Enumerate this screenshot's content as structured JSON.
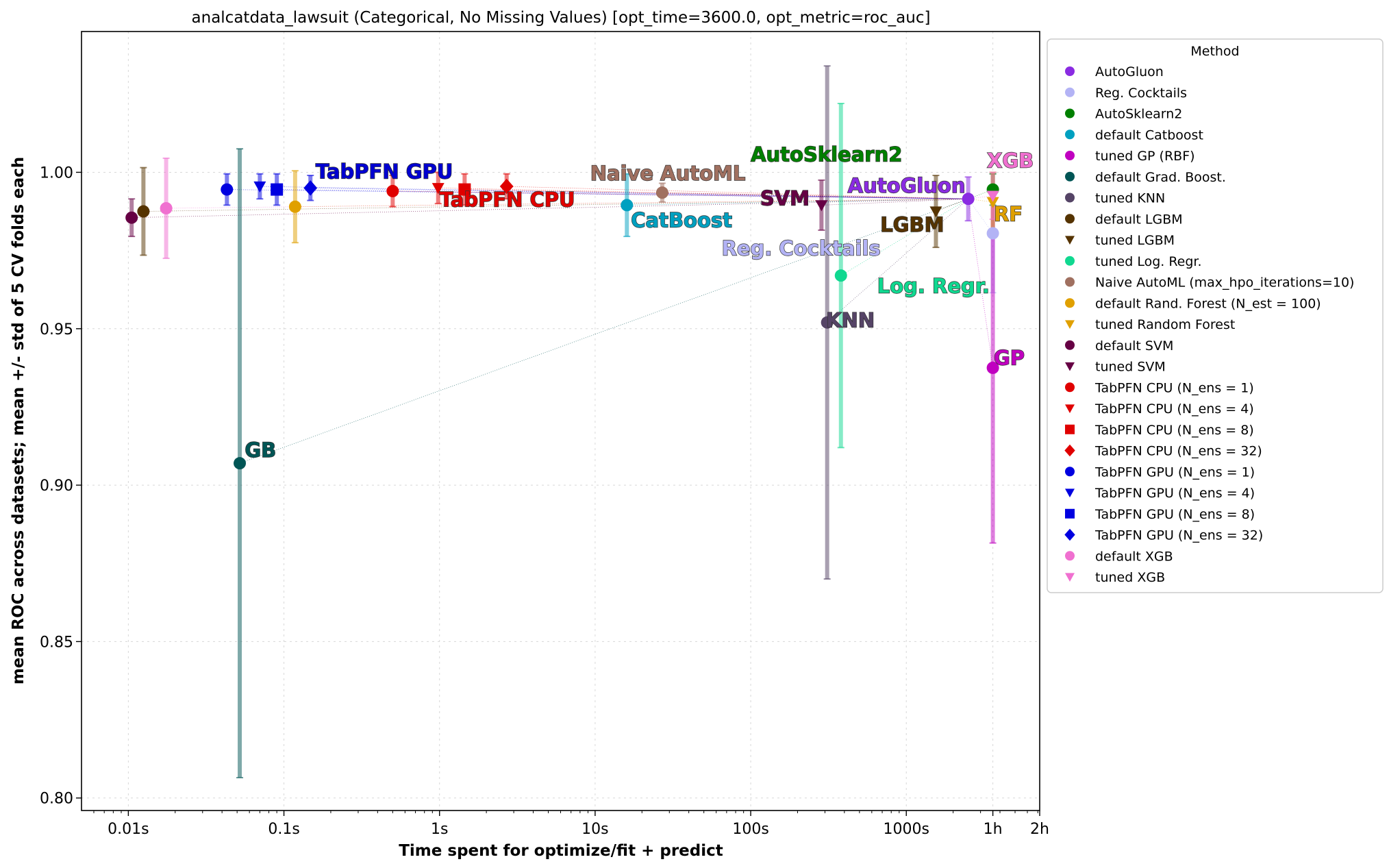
{
  "chart_data": {
    "type": "scatter",
    "title": "analcatdata_lawsuit (Categorical, No Missing Values) [opt_time=3600.0, opt_metric=roc_auc]",
    "xlabel": "Time spent for optimize/fit + predict",
    "ylabel": "mean ROC across datasets; mean +/- std of 5 CV folds each",
    "x_scale": "log",
    "xlim_seconds": [
      0.005,
      7200
    ],
    "ylim": [
      0.796,
      1.045
    ],
    "x_ticks": [
      {
        "value": 0.01,
        "label": "0.01s"
      },
      {
        "value": 0.1,
        "label": "0.1s"
      },
      {
        "value": 1,
        "label": "1s"
      },
      {
        "value": 10,
        "label": "10s"
      },
      {
        "value": 100,
        "label": "100s"
      },
      {
        "value": 1000,
        "label": "1000s"
      },
      {
        "value": 3600,
        "label": "1h"
      },
      {
        "value": 7200,
        "label": "2h"
      }
    ],
    "y_ticks": [
      {
        "value": 0.8,
        "label": "0.80"
      },
      {
        "value": 0.85,
        "label": "0.85"
      },
      {
        "value": 0.9,
        "label": "0.90"
      },
      {
        "value": 0.95,
        "label": "0.95"
      },
      {
        "value": 1.0,
        "label": "1.00"
      }
    ],
    "grid": true,
    "legend": {
      "title": "Method",
      "placement": "outside right"
    },
    "series": [
      {
        "name": "AutoGluon",
        "color": "#8a2be2",
        "marker": "circle",
        "x": 2500,
        "y": 0.9915,
        "err": 0.007
      },
      {
        "name": "Reg. Cocktails",
        "color": "#b3b3f5",
        "marker": "circle",
        "x": 3600,
        "y": 0.9805,
        "err": 0.019
      },
      {
        "name": "AutoSklearn2",
        "color": "#008000",
        "marker": "circle",
        "x": 3600,
        "y": 0.9945,
        "err": 0.005
      },
      {
        "name": "default Catboost",
        "color": "#00a0c0",
        "marker": "circle",
        "x": 16,
        "y": 0.9895,
        "err": 0.01
      },
      {
        "name": "tuned GP (RBF)",
        "color": "#c000c0",
        "marker": "circle",
        "x": 3600,
        "y": 0.9375,
        "err": 0.056
      },
      {
        "name": "default Grad. Boost.",
        "color": "#005555",
        "marker": "circle",
        "x": 0.052,
        "y": 0.907,
        "err": 0.1005
      },
      {
        "name": "tuned KNN",
        "color": "#554466",
        "marker": "circle",
        "x": 310,
        "y": 0.952,
        "err": 0.082
      },
      {
        "name": "default LGBM",
        "color": "#553300",
        "marker": "circle",
        "x": 0.0125,
        "y": 0.9875,
        "err": 0.014
      },
      {
        "name": "tuned LGBM",
        "color": "#553300",
        "marker": "triangle",
        "x": 1550,
        "y": 0.9875,
        "err": 0.0115
      },
      {
        "name": "tuned Log. Regr.",
        "color": "#10d890",
        "marker": "circle",
        "x": 380,
        "y": 0.967,
        "err": 0.055
      },
      {
        "name": "Naive AutoML (max_hpo_iterations=10)",
        "color": "#a07060",
        "marker": "circle",
        "x": 27,
        "y": 0.9935,
        "err": 0.003
      },
      {
        "name": "default Rand. Forest (N_est = 100)",
        "color": "#e0a000",
        "marker": "circle",
        "x": 0.118,
        "y": 0.989,
        "err": 0.0115
      },
      {
        "name": "tuned Random Forest",
        "color": "#e0a000",
        "marker": "triangle",
        "x": 3600,
        "y": 0.9905,
        "err": 0.0095
      },
      {
        "name": "default SVM",
        "color": "#660044",
        "marker": "circle",
        "x": 0.0105,
        "y": 0.9855,
        "err": 0.006
      },
      {
        "name": "tuned SVM",
        "color": "#660044",
        "marker": "triangle",
        "x": 285,
        "y": 0.9895,
        "err": 0.008
      },
      {
        "name": "TabPFN CPU (N_ens =  1)",
        "color": "#e00000",
        "marker": "circle",
        "x": 0.5,
        "y": 0.994,
        "err": 0.005
      },
      {
        "name": "TabPFN CPU (N_ens =  4)",
        "color": "#e00000",
        "marker": "triangle",
        "x": 0.98,
        "y": 0.995,
        "err": 0.005
      },
      {
        "name": "TabPFN CPU (N_ens =  8)",
        "color": "#e00000",
        "marker": "square",
        "x": 1.45,
        "y": 0.9945,
        "err": 0.005
      },
      {
        "name": "TabPFN CPU (N_ens = 32)",
        "color": "#e00000",
        "marker": "diamond",
        "x": 2.7,
        "y": 0.9955,
        "err": 0.004
      },
      {
        "name": "TabPFN GPU (N_ens =  1)",
        "color": "#0000e0",
        "marker": "circle",
        "x": 0.043,
        "y": 0.9945,
        "err": 0.005
      },
      {
        "name": "TabPFN GPU (N_ens =  4)",
        "color": "#0000e0",
        "marker": "triangle",
        "x": 0.07,
        "y": 0.9955,
        "err": 0.004
      },
      {
        "name": "TabPFN GPU (N_ens =  8)",
        "color": "#0000e0",
        "marker": "square",
        "x": 0.09,
        "y": 0.9945,
        "err": 0.005
      },
      {
        "name": "TabPFN GPU (N_ens = 32)",
        "color": "#0000e0",
        "marker": "diamond",
        "x": 0.148,
        "y": 0.995,
        "err": 0.004
      },
      {
        "name": "default XGB",
        "color": "#f070d0",
        "marker": "circle",
        "x": 0.0175,
        "y": 0.9885,
        "err": 0.016
      },
      {
        "name": "tuned XGB",
        "color": "#f070d0",
        "marker": "triangle",
        "x": 3600,
        "y": 0.9925,
        "err": 0.0075
      }
    ],
    "annotations": [
      {
        "text": "TabPFN GPU",
        "x": 0.16,
        "y": 0.998,
        "color": "#0000d0"
      },
      {
        "text": "TabPFN CPU",
        "x": 1.0,
        "y": 0.989,
        "color": "#e00000"
      },
      {
        "text": "Naive AutoML",
        "x": 9.3,
        "y": 0.9975,
        "color": "#a07060"
      },
      {
        "text": "CatBoost",
        "x": 17,
        "y": 0.9825,
        "color": "#00a0c0"
      },
      {
        "text": "AutoSklearn2",
        "x": 100,
        "y": 1.0035,
        "color": "#008000"
      },
      {
        "text": "SVM",
        "x": 115,
        "y": 0.9895,
        "color": "#660044"
      },
      {
        "text": "AutoGluon",
        "x": 420,
        "y": 0.9935,
        "color": "#8a2be2"
      },
      {
        "text": "XGB",
        "x": 3300,
        "y": 1.0015,
        "color": "#f070d0"
      },
      {
        "text": "RF",
        "x": 3650,
        "y": 0.9845,
        "color": "#e0a000"
      },
      {
        "text": "LGBM",
        "x": 680,
        "y": 0.981,
        "color": "#553300"
      },
      {
        "text": "Reg. Cocktails",
        "x": 65,
        "y": 0.9735,
        "color": "#b3b3f5"
      },
      {
        "text": "Log. Regr.",
        "x": 650,
        "y": 0.9615,
        "color": "#10d890"
      },
      {
        "text": "KNN",
        "x": 305,
        "y": 0.9505,
        "color": "#554466"
      },
      {
        "text": "GP",
        "x": 3650,
        "y": 0.9385,
        "color": "#c000c0"
      },
      {
        "text": "GB",
        "x": 0.056,
        "y": 0.909,
        "color": "#005555"
      }
    ]
  }
}
